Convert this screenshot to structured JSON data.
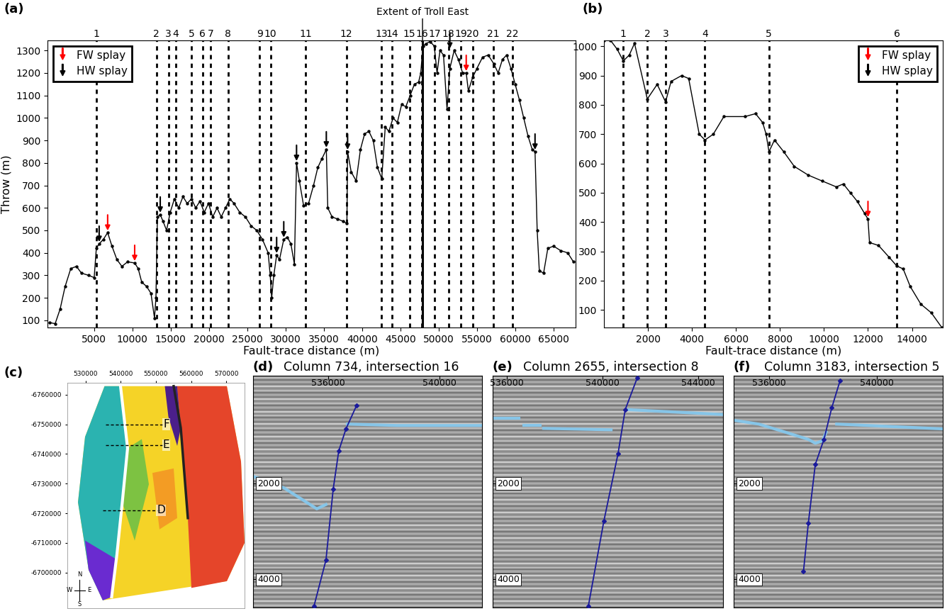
{
  "chart_data": [
    {
      "type": "line",
      "panel": "(a)",
      "color": "#000000",
      "marker": "dot",
      "x_label": "Fault-trace distance (m)",
      "y_label": "Throw (m)",
      "xlim": [
        -1100,
        67900
      ],
      "ylim": [
        68,
        1345
      ],
      "xticks": [
        5000,
        10000,
        15000,
        20000,
        25000,
        30000,
        35000,
        40000,
        45000,
        50000,
        55000,
        60000,
        65000
      ],
      "yticks": [
        100,
        200,
        300,
        400,
        500,
        600,
        700,
        800,
        900,
        1000,
        1100,
        1200,
        1300
      ],
      "x": [
        -840,
        -100,
        550,
        1200,
        1940,
        2680,
        3330,
        4260,
        5000,
        5280,
        5650,
        6200,
        6760,
        7320,
        7970,
        8620,
        9360,
        10290,
        10750,
        11210,
        11860,
        12420,
        12880,
        13070,
        13260,
        13630,
        14000,
        14460,
        14930,
        15480,
        16040,
        16600,
        17150,
        17710,
        18270,
        18820,
        19380,
        19930,
        20490,
        21050,
        21600,
        22160,
        22720,
        23270,
        24020,
        24760,
        25500,
        26240,
        26980,
        27730,
        28000,
        28190,
        28470,
        28840,
        29210,
        29770,
        30230,
        30700,
        31160,
        31440,
        31810,
        32360,
        33010,
        33660,
        34220,
        34780,
        35330,
        35520,
        36080,
        36820,
        37560,
        38020,
        38110,
        38580,
        39230,
        39790,
        40340,
        40900,
        41460,
        42010,
        42570,
        43030,
        43500,
        44050,
        44610,
        45170,
        45720,
        46280,
        46840,
        47390,
        47670,
        47950,
        48320,
        48880,
        49430,
        49800,
        50180,
        50640,
        51100,
        51470,
        52030,
        52590,
        53140,
        53610,
        53890,
        54440,
        55000,
        55740,
        56480,
        57230,
        57780,
        58340,
        58890,
        59450,
        60010,
        60560,
        61120,
        61680,
        62230,
        62600,
        62880,
        63160,
        63720,
        64270,
        65020,
        65950,
        66870,
        67620
      ],
      "values": [
        90,
        85,
        150,
        250,
        330,
        340,
        310,
        300,
        290,
        420,
        440,
        460,
        490,
        430,
        370,
        340,
        360,
        355,
        330,
        270,
        250,
        220,
        110,
        200,
        560,
        570,
        540,
        500,
        580,
        640,
        600,
        650,
        620,
        640,
        600,
        630,
        580,
        620,
        560,
        600,
        560,
        600,
        640,
        620,
        580,
        560,
        520,
        500,
        460,
        400,
        300,
        200,
        300,
        390,
        370,
        460,
        470,
        440,
        350,
        800,
        720,
        610,
        620,
        700,
        780,
        820,
        860,
        600,
        560,
        550,
        540,
        530,
        850,
        760,
        720,
        860,
        930,
        940,
        900,
        780,
        730,
        960,
        940,
        1000,
        980,
        1060,
        1050,
        1100,
        1150,
        1160,
        1200,
        1320,
        1330,
        1340,
        1320,
        1200,
        1300,
        1280,
        1040,
        1220,
        1300,
        1260,
        1200,
        1200,
        1120,
        1180,
        1220,
        1270,
        1280,
        1240,
        1200,
        1260,
        1280,
        1220,
        1150,
        1080,
        1000,
        920,
        860,
        850,
        500,
        320,
        310,
        420,
        430,
        410,
        400,
        360
      ],
      "intersections": {
        "labels": [
          "1",
          "2",
          "3",
          "4",
          "5",
          "6",
          "7",
          "8",
          "9",
          "10",
          "11",
          "12",
          "13",
          "14",
          "15",
          "16",
          "17",
          "18",
          "19",
          "20",
          "21",
          "22"
        ],
        "x": [
          5280,
          13150,
          14700,
          15650,
          17700,
          19150,
          20200,
          22500,
          26600,
          28050,
          32600,
          37950,
          42500,
          43900,
          46200,
          47800,
          49450,
          51300,
          52900,
          54450,
          57150,
          59650
        ]
      },
      "annotations": [
        {
          "text": "Extent of Troll East",
          "x": 47900
        }
      ],
      "legend": "upper left",
      "series": [
        {
          "name": "FW splay",
          "type": "arrow",
          "color": "#ff0000",
          "x": [
            6760,
            10290,
            53610
          ],
          "values": [
            490,
            355,
            1200
          ]
        },
        {
          "name": "HW splay",
          "type": "arrow",
          "color": "#000000",
          "x": [
            5650,
            13630,
            28840,
            29770,
            31440,
            35330,
            38110,
            51470,
            62600
          ],
          "values": [
            440,
            570,
            390,
            460,
            800,
            860,
            850,
            1300,
            850
          ]
        }
      ]
    },
    {
      "type": "line",
      "panel": "(b)",
      "color": "#000000",
      "marker": "dot",
      "x_label": "Fault-trace distance (m)",
      "xlim": [
        0,
        15400
      ],
      "ylim": [
        40,
        1020
      ],
      "xticks": [
        2000,
        4000,
        6000,
        8000,
        10000,
        12000,
        14000
      ],
      "yticks": [
        100,
        200,
        300,
        400,
        500,
        600,
        700,
        800,
        900,
        1000
      ],
      "x": [
        0,
        300,
        600,
        880,
        1150,
        1390,
        1970,
        2420,
        2800,
        3050,
        3530,
        3850,
        4330,
        4590,
        4970,
        5450,
        6410,
        6890,
        7210,
        7370,
        7500,
        7750,
        8170,
        8650,
        9290,
        9920,
        10560,
        10880,
        11200,
        11520,
        11840,
        12000,
        12070,
        12480,
        12960,
        13310,
        13600,
        13920,
        14400,
        14880,
        15355
      ],
      "values": [
        1020,
        1020,
        990,
        950,
        970,
        1010,
        820,
        870,
        810,
        880,
        900,
        890,
        700,
        680,
        700,
        760,
        760,
        770,
        740,
        700,
        640,
        680,
        640,
        590,
        560,
        540,
        520,
        530,
        500,
        470,
        430,
        410,
        330,
        320,
        280,
        250,
        240,
        180,
        120,
        90,
        40
      ],
      "intersections": {
        "labels": [
          "1",
          "2",
          "3",
          "4",
          "5",
          "6"
        ],
        "x": [
          880,
          1970,
          2800,
          4590,
          7500,
          13310
        ]
      },
      "legend": "upper right",
      "series": [
        {
          "name": "FW splay",
          "type": "arrow",
          "color": "#ff0000",
          "x": [
            12000
          ],
          "values": [
            410
          ]
        },
        {
          "name": "HW splay",
          "type": "arrow",
          "color": "#000000",
          "x": [],
          "values": []
        }
      ]
    },
    {
      "type": "map",
      "panel": "(c)",
      "xlim": [
        524800,
        575200
      ],
      "ylim": [
        -6688000,
        -6764000
      ],
      "xticks": [
        530000,
        540000,
        550000,
        560000,
        570000
      ],
      "yticks": [
        -6760000,
        -6750000,
        -6740000,
        -6730000,
        -6720000,
        -6710000,
        -6700000
      ],
      "sections": [
        {
          "label": "F",
          "x": [
            535700,
            552900
          ],
          "y": -6750000
        },
        {
          "label": "E",
          "x": [
            535700,
            552900
          ],
          "y": -6743000
        },
        {
          "label": "D",
          "x": [
            534900,
            551400
          ],
          "y": -6721000
        }
      ],
      "compass": [
        "N",
        "E",
        "S",
        "W"
      ]
    },
    {
      "type": "section",
      "panel": "(d)",
      "title": "Column 734, intersection 16",
      "xlim": [
        533300,
        541530
      ],
      "ylim": [
        4590,
        -250
      ],
      "xticks": [
        536000,
        540000
      ],
      "yticks": [
        2000,
        4000
      ],
      "fault": {
        "color": "#1a1a9c",
        "x": [
          537020,
          536640,
          536380,
          536180,
          535920,
          535490
        ],
        "values": [
          372,
          860,
          1320,
          2120,
          3600,
          4560
        ]
      },
      "horizons": [
        {
          "color": "#86c5e8",
          "x": [
            533300,
            534400,
            535160,
            535590,
            535920
          ],
          "values": [
            1850,
            2090,
            2370,
            2530,
            2440
          ]
        },
        {
          "color": "#86c5e8",
          "x": [
            536690,
            538470,
            541530
          ],
          "values": [
            760,
            790,
            790
          ]
        }
      ]
    },
    {
      "type": "section",
      "panel": "(e)",
      "title": "Column 2655, intersection 8",
      "xlim": [
        535410,
        545040
      ],
      "ylim": [
        4590,
        -250
      ],
      "xticks": [
        536000,
        540000,
        544000
      ],
      "yticks": [
        2000,
        4000
      ],
      "fault": {
        "color": "#1a1a9c",
        "x": [
          541450,
          540950,
          540650,
          540060,
          539410
        ],
        "values": [
          -200,
          460,
          1380,
          2780,
          4560
        ]
      },
      "horizons": [
        {
          "color": "#86c5e8",
          "x": [
            535470,
            536510
          ],
          "values": [
            640,
            640
          ]
        },
        {
          "color": "#86c5e8",
          "x": [
            536720,
            537400
          ],
          "values": [
            790,
            790
          ]
        },
        {
          "color": "#86c5e8",
          "x": [
            537540,
            540360
          ],
          "values": [
            850,
            880
          ]
        },
        {
          "color": "#86c5e8",
          "x": [
            541100,
            545040
          ],
          "values": [
            460,
            560
          ]
        }
      ]
    },
    {
      "type": "section",
      "panel": "(f)",
      "title": "Column 3183, intersection 5",
      "xlim": [
        534680,
        542440
      ],
      "ylim": [
        4590,
        -250
      ],
      "xticks": [
        536000,
        540000
      ],
      "yticks": [
        2000,
        4000
      ],
      "fault": {
        "color": "#1a1a9c",
        "x": [
          538630,
          538320,
          538030,
          537710,
          537450,
          537270
        ],
        "values": [
          -150,
          420,
          1080,
          1600,
          2830,
          3840
        ]
      },
      "horizons": [
        {
          "color": "#86c5e8",
          "x": [
            534680,
            535610,
            536660,
            537450,
            537710,
            537980,
            538110
          ],
          "values": [
            680,
            760,
            940,
            1080,
            1160,
            1110,
            930
          ]
        },
        {
          "color": "#86c5e8",
          "x": [
            538500,
            542440
          ],
          "values": [
            760,
            860
          ]
        }
      ]
    }
  ]
}
